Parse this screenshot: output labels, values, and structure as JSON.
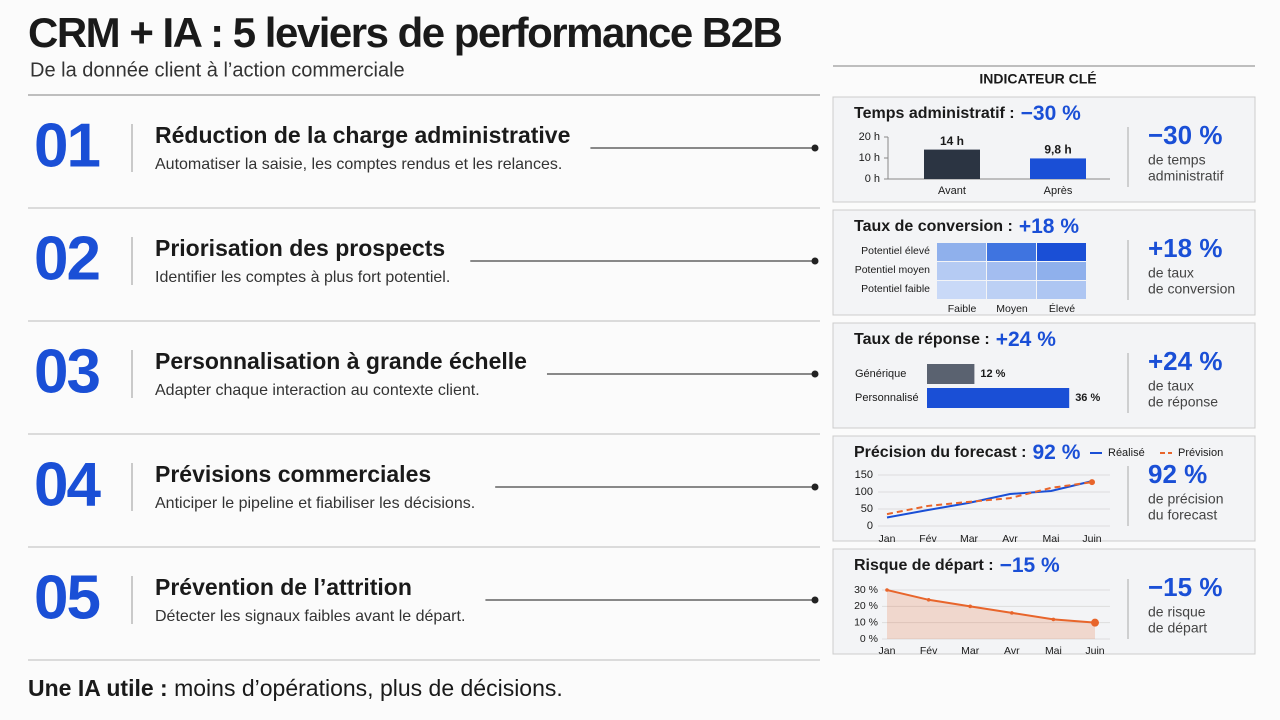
{
  "title": "CRM + IA : 5 leviers de performance B2B",
  "subtitle": "De la donnée client à l’action commerciale",
  "panel_header": "INDICATEUR CLÉ",
  "footer": {
    "bold": "Une IA utile :",
    "text": " moins d’opérations, plus de décisions."
  },
  "levers": [
    {
      "number": "01",
      "title": "Réduction de la charge administrative",
      "description": "Automatiser la saisie, les comptes rendus et les relances.",
      "kpi": {
        "label": "Temps administratif :",
        "value": "−30 %",
        "big": "−30 %",
        "caption": [
          "de temps",
          "administratif"
        ]
      },
      "chart": {
        "type": "bar",
        "categories": [
          "Avant",
          "Après"
        ],
        "values": [
          14,
          9.8
        ],
        "value_labels": [
          "14 h",
          "9,8 h"
        ],
        "colors": [
          "#2b3442",
          "#1a4fd6"
        ],
        "ylim": [
          0,
          20
        ],
        "yticks": [
          {
            "value": 0,
            "label": "0 h"
          },
          {
            "value": 10,
            "label": "10 h"
          },
          {
            "value": 20,
            "label": "20 h"
          }
        ]
      }
    },
    {
      "number": "02",
      "title": "Priorisation des prospects",
      "description": "Identifier les comptes à plus fort potentiel.",
      "kpi": {
        "label": "Taux de conversion :",
        "value": "+18 %",
        "big": "+18 %",
        "caption": [
          "de taux",
          "de conversion"
        ]
      },
      "chart": {
        "type": "heatmap",
        "rows": [
          "Potentiel élevé",
          "Potentiel moyen",
          "Potentiel faible"
        ],
        "columns": [
          "Faible",
          "Moyen",
          "Élevé"
        ],
        "colors": [
          [
            "#8fb0ec",
            "#3f74e0",
            "#1a4fd6"
          ],
          [
            "#b5cbf3",
            "#a3bdf0",
            "#8fb0ec"
          ],
          [
            "#c9d9f7",
            "#bcd0f4",
            "#aec6f2"
          ]
        ]
      }
    },
    {
      "number": "03",
      "title": "Personnalisation à grande échelle",
      "description": "Adapter chaque interaction au contexte client.",
      "kpi": {
        "label": "Taux de réponse :",
        "value": "+24 %",
        "big": "+24 %",
        "caption": [
          "de taux",
          "de réponse"
        ]
      },
      "chart": {
        "type": "hbar",
        "categories": [
          "Générique",
          "Personnalisé"
        ],
        "values": [
          12,
          36
        ],
        "value_labels": [
          "12 %",
          "36 %"
        ],
        "colors": [
          "#5a6270",
          "#1a4fd6"
        ],
        "xlim": [
          0,
          40
        ]
      }
    },
    {
      "number": "04",
      "title": "Prévisions commerciales",
      "description": "Anticiper le pipeline et fiabiliser les décisions.",
      "kpi": {
        "label": "Précision du forecast :",
        "value": "92 %",
        "big": "92 %",
        "caption": [
          "de précision",
          "du forecast"
        ]
      },
      "chart": {
        "type": "line",
        "categories": [
          "Jan",
          "Fév",
          "Mar",
          "Avr",
          "Mai",
          "Juin"
        ],
        "ylim": [
          0,
          150
        ],
        "yticks": [
          0,
          50,
          100,
          150
        ],
        "series": [
          {
            "name": "Réalisé",
            "color": "#1a4fd6",
            "dashed": false,
            "values": [
              25,
              47,
              68,
              94,
              103,
              132
            ]
          },
          {
            "name": "Prévision",
            "color": "#e8652b",
            "dashed": true,
            "values": [
              35,
              59,
              71,
              82,
              112,
              129
            ]
          }
        ]
      }
    },
    {
      "number": "05",
      "title": "Prévention de l’attrition",
      "description": "Détecter les signaux faibles avant le départ.",
      "kpi": {
        "label": "Risque de départ :",
        "value": "−15 %",
        "big": "−15 %",
        "caption": [
          "de risque",
          "de départ"
        ]
      },
      "chart": {
        "type": "area",
        "categories": [
          "Jan",
          "Fév",
          "Mar",
          "Avr",
          "Mai",
          "Juin"
        ],
        "values": [
          30,
          24,
          20,
          16,
          12,
          10
        ],
        "color": "#e8652b",
        "ylim": [
          0,
          30
        ],
        "yticks": [
          {
            "value": 0,
            "label": "0 %"
          },
          {
            "value": 10,
            "label": "10 %"
          },
          {
            "value": 20,
            "label": "20 %"
          },
          {
            "value": 30,
            "label": "30 %"
          }
        ]
      }
    }
  ]
}
